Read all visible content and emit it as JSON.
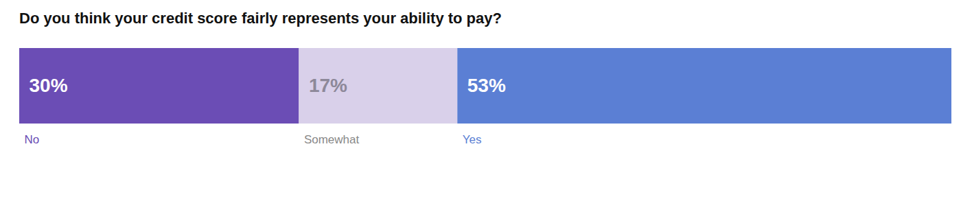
{
  "chart_data": {
    "type": "bar",
    "title": "Do you think your credit score fairly represents your ability to pay?",
    "orientation": "horizontal",
    "stacked": true,
    "data_labels": true,
    "tick_labels": false,
    "grid": false,
    "categories": [
      null
    ],
    "xlim": [
      0,
      100
    ],
    "series": [
      {
        "name": "No",
        "color": "#6b4db5",
        "values": [
          30
        ],
        "value_labels": [
          "30%"
        ]
      },
      {
        "name": "Somewhat",
        "color": "#d9d0ea",
        "values": [
          17
        ],
        "value_labels": [
          "17%"
        ]
      },
      {
        "name": "Yes",
        "color": "#5b7fd4",
        "values": [
          53
        ],
        "value_labels": [
          "53%"
        ]
      }
    ]
  }
}
